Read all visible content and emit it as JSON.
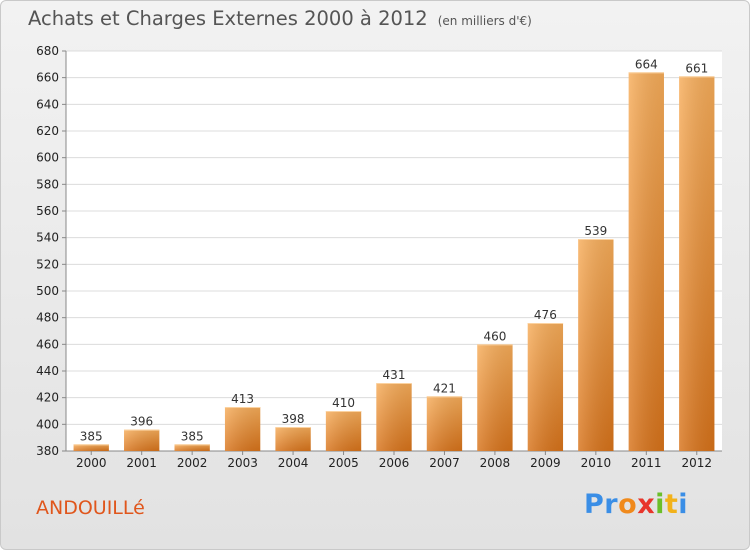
{
  "title": "Achats et Charges Externes 2000 à 2012",
  "subtitle": "(en milliers d'€)",
  "commune": "ANDOUILLé",
  "logo": {
    "letters": [
      "P",
      "r",
      "o",
      "x",
      "i",
      "t",
      "i"
    ],
    "colors": [
      "#3a8ee6",
      "#3a8ee6",
      "#f08a1c",
      "#e8352b",
      "#6bbf2a",
      "#f2b21a",
      "#3a8ee6"
    ]
  },
  "colors": {
    "bar": "#f08a28",
    "bar_light": "#f7ad5a",
    "commune": "#e0561c"
  },
  "chart_data": {
    "type": "bar",
    "categories": [
      "2000",
      "2001",
      "2002",
      "2003",
      "2004",
      "2005",
      "2006",
      "2007",
      "2008",
      "2009",
      "2010",
      "2011",
      "2012"
    ],
    "values": [
      385,
      396,
      385,
      413,
      398,
      410,
      431,
      421,
      460,
      476,
      539,
      664,
      661
    ],
    "title": "Achats et Charges Externes 2000 à 2012",
    "subtitle": "(en milliers d'€)",
    "ylim": [
      380,
      680
    ],
    "yticks": [
      380,
      400,
      420,
      440,
      460,
      480,
      500,
      520,
      540,
      560,
      580,
      600,
      620,
      640,
      660,
      680
    ],
    "grid": true,
    "data_labels": true
  }
}
